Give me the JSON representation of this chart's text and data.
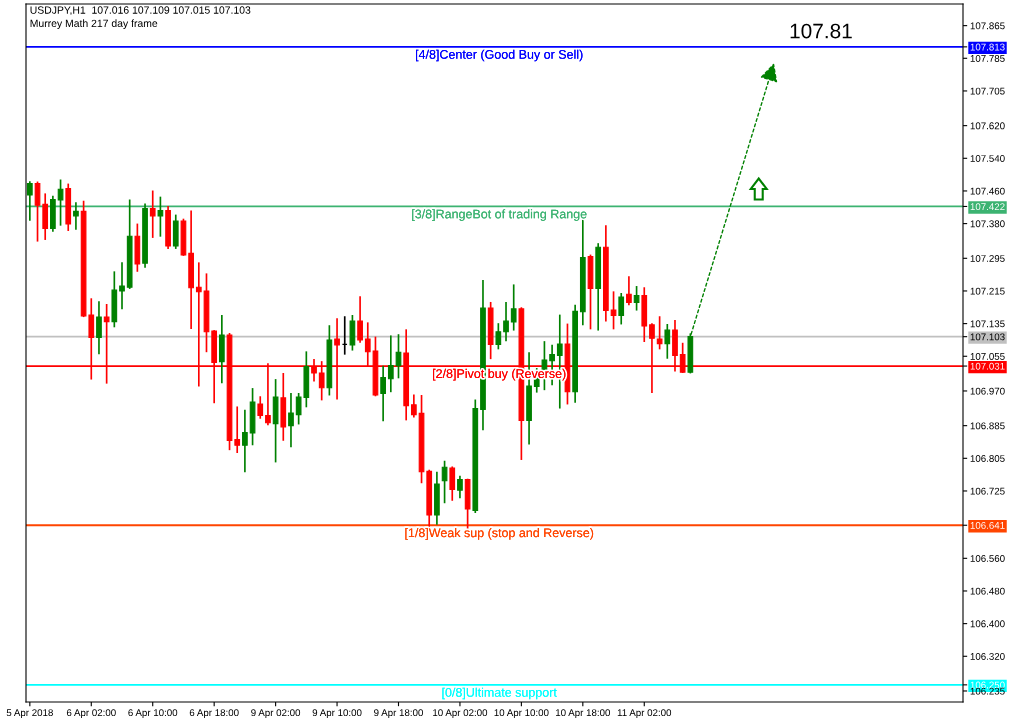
{
  "chart_data": {
    "type": "candlestick",
    "title": "USDJPY,H1  107.016 107.109 107.015 107.103",
    "subtitle": "Murrey Math 217 day frame",
    "categories": [
      "5 Apr 2018",
      null,
      null,
      null,
      null,
      null,
      null,
      null,
      "6 Apr 02:00",
      null,
      null,
      null,
      null,
      null,
      null,
      null,
      "6 Apr 10:00",
      null,
      null,
      null,
      null,
      null,
      null,
      null,
      "6 Apr 18:00",
      null,
      null,
      null,
      null,
      null,
      null,
      null,
      "9 Apr 02:00",
      null,
      null,
      null,
      null,
      null,
      null,
      null,
      "9 Apr 10:00",
      null,
      null,
      null,
      null,
      null,
      null,
      null,
      "9 Apr 18:00",
      null,
      null,
      null,
      null,
      null,
      null,
      null,
      "10 Apr 02:00",
      null,
      null,
      null,
      null,
      null,
      null,
      null,
      "10 Apr 10:00",
      null,
      null,
      null,
      null,
      null,
      null,
      null,
      "10 Apr 18:00",
      null,
      null,
      null,
      null,
      null,
      null,
      null,
      "11 Apr 02:00",
      null,
      null,
      null,
      null,
      null,
      null,
      null,
      null,
      null,
      null,
      null,
      null,
      null,
      null,
      null,
      null,
      null,
      null,
      null,
      null,
      null,
      null,
      null,
      null,
      null,
      null,
      null,
      null,
      null,
      null,
      null,
      null,
      null,
      null,
      null,
      null,
      null,
      null,
      null,
      null,
      null
    ],
    "ohlc": [
      [
        107.45,
        107.482,
        107.389,
        107.478
      ],
      [
        107.478,
        107.481,
        107.338,
        107.425
      ],
      [
        107.427,
        107.452,
        107.342,
        107.368
      ],
      [
        107.368,
        107.446,
        107.362,
        107.439
      ],
      [
        107.438,
        107.486,
        107.377,
        107.464
      ],
      [
        107.466,
        107.476,
        107.364,
        107.379
      ],
      [
        107.399,
        107.43,
        107.367,
        107.41
      ],
      [
        107.41,
        107.434,
        107.153,
        107.154
      ],
      [
        107.156,
        107.195,
        107.0,
        107.101
      ],
      [
        107.101,
        107.188,
        107.062,
        107.151
      ],
      [
        107.151,
        107.181,
        106.99,
        107.14
      ],
      [
        107.14,
        107.261,
        107.128,
        107.217
      ],
      [
        107.215,
        107.283,
        107.172,
        107.227
      ],
      [
        107.224,
        107.437,
        107.222,
        107.349
      ],
      [
        107.349,
        107.378,
        107.264,
        107.281
      ],
      [
        107.283,
        107.427,
        107.274,
        107.417
      ],
      [
        107.417,
        107.459,
        107.347,
        107.399
      ],
      [
        107.399,
        107.444,
        107.35,
        107.412
      ],
      [
        107.412,
        107.421,
        107.32,
        107.325
      ],
      [
        107.325,
        107.4,
        107.32,
        107.386
      ],
      [
        107.386,
        107.39,
        107.303,
        107.303
      ],
      [
        107.307,
        107.41,
        107.124,
        107.223
      ],
      [
        107.224,
        107.283,
        106.983,
        107.213
      ],
      [
        107.215,
        107.256,
        107.067,
        107.115
      ],
      [
        107.117,
        107.117,
        106.942,
        107.04
      ],
      [
        107.042,
        107.154,
        106.991,
        107.107
      ],
      [
        107.107,
        107.11,
        106.827,
        106.849
      ],
      [
        106.851,
        106.93,
        106.82,
        106.837
      ],
      [
        106.837,
        106.922,
        106.773,
        106.868
      ],
      [
        106.867,
        106.975,
        106.839,
        106.943
      ],
      [
        106.938,
        106.955,
        106.904,
        106.91
      ],
      [
        106.91,
        107.036,
        106.888,
        106.892
      ],
      [
        106.89,
        106.997,
        106.797,
        106.955
      ],
      [
        106.953,
        107.012,
        106.85,
        106.882
      ],
      [
        106.885,
        106.963,
        106.834,
        106.916
      ],
      [
        106.912,
        106.963,
        106.89,
        106.955
      ],
      [
        106.954,
        107.065,
        106.932,
        107.03
      ],
      [
        107.03,
        107.046,
        106.995,
        107.014
      ],
      [
        107.014,
        107.041,
        106.949,
        106.978
      ],
      [
        106.978,
        107.129,
        106.961,
        107.095
      ],
      [
        107.097,
        107.146,
        106.951,
        107.083
      ],
      [
        107.084,
        107.151,
        107.061,
        107.084
      ],
      [
        107.083,
        107.154,
        107.071,
        107.141
      ],
      [
        107.141,
        107.2,
        107.09,
        107.095
      ],
      [
        107.097,
        107.136,
        107.033,
        107.066
      ],
      [
        107.068,
        107.101,
        106.959,
        106.96
      ],
      [
        106.964,
        107.03,
        106.898,
        107.003
      ],
      [
        107.0,
        107.104,
        106.969,
        107.032
      ],
      [
        107.032,
        107.107,
        107.003,
        107.065
      ],
      [
        107.063,
        107.119,
        106.9,
        106.934
      ],
      [
        106.936,
        106.959,
        106.907,
        106.912
      ],
      [
        106.915,
        106.958,
        106.746,
        106.772
      ],
      [
        106.773,
        106.775,
        106.63,
        106.666
      ],
      [
        106.666,
        106.77,
        106.644,
        106.742
      ],
      [
        106.75,
        106.797,
        106.697,
        106.783
      ],
      [
        106.781,
        106.783,
        106.703,
        106.729
      ],
      [
        106.727,
        106.76,
        106.709,
        106.753
      ],
      [
        106.753,
        106.753,
        106.635,
        106.681
      ],
      [
        106.677,
        106.947,
        106.673,
        106.927
      ],
      [
        106.925,
        107.24,
        106.876,
        107.173
      ],
      [
        107.173,
        107.186,
        107.05,
        107.084
      ],
      [
        107.084,
        107.134,
        107.074,
        107.115
      ],
      [
        107.115,
        107.186,
        107.094,
        107.141
      ],
      [
        107.139,
        107.229,
        107.12,
        107.171
      ],
      [
        107.171,
        107.173,
        106.803,
        106.898
      ],
      [
        106.898,
        107.063,
        106.841,
        106.982
      ],
      [
        106.981,
        107.024,
        106.968,
        107.008
      ],
      [
        107.008,
        107.09,
        106.974,
        107.046
      ],
      [
        107.044,
        107.081,
        106.986,
        107.059
      ],
      [
        107.057,
        107.155,
        106.929,
        107.085
      ],
      [
        107.085,
        107.133,
        106.939,
        106.968
      ],
      [
        106.968,
        107.179,
        106.943,
        107.165
      ],
      [
        107.164,
        107.405,
        107.133,
        107.297
      ],
      [
        107.299,
        107.302,
        107.123,
        107.221
      ],
      [
        107.221,
        107.33,
        107.12,
        107.322
      ],
      [
        107.322,
        107.374,
        107.142,
        107.167
      ],
      [
        107.168,
        107.212,
        107.123,
        107.155
      ],
      [
        107.155,
        107.208,
        107.135,
        107.2
      ],
      [
        107.207,
        107.249,
        107.182,
        107.187
      ],
      [
        107.187,
        107.225,
        107.169,
        107.204
      ],
      [
        107.204,
        107.222,
        107.092,
        107.129
      ],
      [
        107.132,
        107.134,
        106.967,
        107.099
      ],
      [
        107.097,
        107.151,
        107.074,
        107.086
      ],
      [
        107.086,
        107.132,
        107.051,
        107.119
      ],
      [
        107.119,
        107.142,
        107.02,
        107.057
      ],
      [
        107.059,
        107.086,
        107.016,
        107.016
      ],
      [
        107.016,
        107.109,
        107.015,
        107.103
      ],
      null,
      null,
      null,
      null,
      null,
      null,
      null,
      null,
      null,
      null,
      null,
      null,
      null,
      null,
      null,
      null,
      null,
      null,
      null,
      null,
      null,
      null,
      null,
      null,
      null,
      null,
      null,
      null,
      null,
      null,
      null,
      null,
      null,
      null,
      null
    ],
    "colors": [
      "#008000",
      "#ff0000",
      "#ff0000",
      "#008000",
      "#008000",
      "#ff0000",
      "#008000",
      "#ff0000",
      "#ff0000",
      "#008000",
      "#ff0000",
      "#008000",
      "#008000",
      "#008000",
      "#ff0000",
      "#008000",
      "#ff0000",
      "#008000",
      "#ff0000",
      "#008000",
      "#ff0000",
      "#ff0000",
      "#ff0000",
      "#ff0000",
      "#ff0000",
      "#008000",
      "#ff0000",
      "#ff0000",
      "#008000",
      "#008000",
      "#ff0000",
      "#ff0000",
      "#008000",
      "#ff0000",
      "#008000",
      "#008000",
      "#008000",
      "#ff0000",
      "#ff0000",
      "#008000",
      "#ff0000",
      "#000000",
      "#008000",
      "#ff0000",
      "#ff0000",
      "#ff0000",
      "#008000",
      "#008000",
      "#008000",
      "#ff0000",
      "#ff0000",
      "#ff0000",
      "#ff0000",
      "#008000",
      "#008000",
      "#ff0000",
      "#008000",
      "#ff0000",
      "#008000",
      "#008000",
      "#ff0000",
      "#008000",
      "#008000",
      "#008000",
      "#ff0000",
      "#008000",
      "#008000",
      "#008000",
      "#008000",
      "#008000",
      "#ff0000",
      "#008000",
      "#008000",
      "#ff0000",
      "#008000",
      "#ff0000",
      "#ff0000",
      "#008000",
      "#ff0000",
      "#008000",
      "#ff0000",
      "#ff0000",
      "#ff0000",
      "#008000",
      "#ff0000",
      "#ff0000",
      "#008000",
      null,
      null,
      null,
      null,
      null,
      null,
      null,
      null,
      null,
      null,
      null,
      null,
      null,
      null,
      null,
      null,
      null,
      null,
      null,
      null,
      null,
      null,
      null,
      null,
      null,
      null,
      null,
      null,
      null,
      null,
      null,
      null,
      null,
      null,
      null
    ],
    "ylim": [
      106.208,
      107.918
    ],
    "yticks": [
      107.865,
      {
        "value": 107.813,
        "label": "107.813"
      },
      107.785,
      107.705,
      {
        "value": 107.62,
        "label": "107.620"
      },
      {
        "value": 107.54,
        "label": "107.540"
      },
      {
        "value": 107.46,
        "label": "107.460"
      },
      {
        "value": 107.422,
        "label": "107.422"
      },
      {
        "value": 107.38,
        "label": "107.380"
      },
      107.295,
      107.215,
      107.135,
      {
        "value": 107.103,
        "label": "107.103"
      },
      107.055,
      {
        "value": 107.031,
        "label": "107.031"
      },
      {
        "value": 106.97,
        "label": "106.970"
      },
      106.885,
      106.805,
      106.725,
      {
        "value": 106.641,
        "label": "106.641"
      },
      {
        "value": 106.56,
        "label": "106.560"
      },
      {
        "value": 106.48,
        "label": "106.480"
      },
      {
        "value": 106.4,
        "label": "106.400"
      },
      {
        "value": 106.32,
        "label": "106.320"
      },
      {
        "value": 106.25,
        "label": "106.250"
      },
      106.235
    ],
    "ref_lines": [
      {
        "axis": "y",
        "value": 107.813,
        "label": "[4/8]Center (Good Buy or Sell)",
        "color": "#0000ff"
      },
      {
        "axis": "y",
        "value": 107.422,
        "label": "[3/8]RangeBot of trading Range",
        "color": "#3cb371"
      },
      {
        "axis": "y",
        "value": 107.103,
        "color": "#c0c0c0"
      },
      {
        "axis": "y",
        "value": 107.031,
        "label": "[2/8]Pivot buy (Reverse)",
        "color": "#ff0000"
      },
      {
        "axis": "y",
        "value": 106.641,
        "label": "[1/8]Weak sup (stop and Reverse)",
        "color": "#ff4500"
      },
      {
        "axis": "y",
        "value": 106.25,
        "label": "[0/8]Ultimate support",
        "color": "#00ffff"
      }
    ],
    "annotations": [
      {
        "text": "107.81",
        "y": 107.81
      }
    ],
    "grid": false,
    "legend": false
  }
}
